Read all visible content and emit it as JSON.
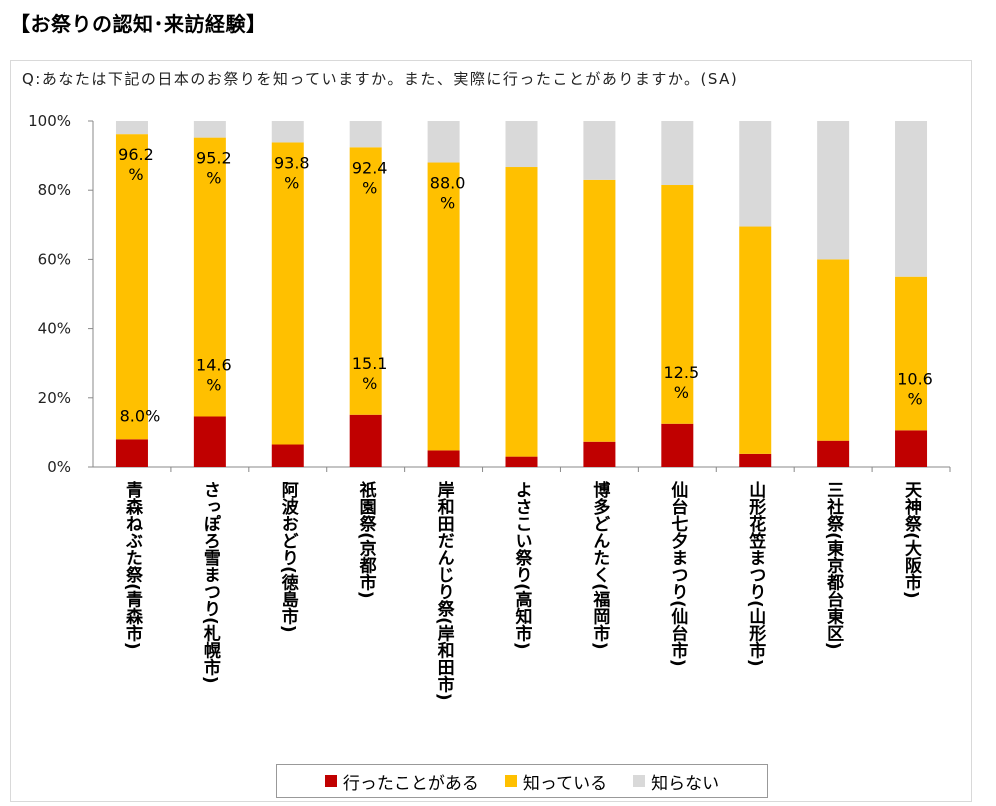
{
  "title": "【お祭りの認知･来訪経験】",
  "subtitle": "Q:あなたは下記の日本のお祭りを知っていますか。また、実際に行ったことがありますか。(SA)",
  "chart_data": {
    "type": "bar",
    "stacked": true,
    "categories": [
      "青森ねぶた祭(青森市)",
      "さっぽろ雪まつり(札幌市)",
      "阿波おどり(徳島市)",
      "祇園祭(京都市)",
      "岸和田だんじり祭(岸和田市)",
      "よさこい祭り(高知市)",
      "博多どんたく(福岡市)",
      "仙台七夕まつり(仙台市)",
      "山形花笠まつり(山形市)",
      "三社祭(東京都台東区)",
      "天神祭(大阪市)"
    ],
    "series": [
      {
        "name": "行ったことがある",
        "color": "#c00000",
        "values": [
          8.0,
          14.6,
          6.5,
          15.1,
          4.8,
          3.0,
          7.3,
          12.5,
          3.8,
          7.6,
          10.6
        ]
      },
      {
        "name": "知っている",
        "color": "#ffc000",
        "values": [
          88.2,
          80.6,
          87.3,
          77.3,
          83.2,
          83.7,
          75.7,
          69.0,
          65.7,
          52.4,
          44.4
        ]
      },
      {
        "name": "知らない",
        "color": "#d9d9d9",
        "values": [
          3.8,
          4.8,
          6.2,
          7.6,
          12.0,
          13.3,
          17.0,
          18.5,
          30.5,
          40.0,
          45.0
        ]
      }
    ],
    "yticks": [
      "0%",
      "20%",
      "40%",
      "60%",
      "80%",
      "100%"
    ],
    "ylim": [
      0,
      100
    ],
    "labels": [
      {
        "cat": 0,
        "series": "total",
        "text": "96.2%"
      },
      {
        "cat": 1,
        "series": "total",
        "text": "95.2%"
      },
      {
        "cat": 2,
        "series": "total",
        "text": "93.8%"
      },
      {
        "cat": 3,
        "series": "total",
        "text": "92.4%"
      },
      {
        "cat": 4,
        "series": "total",
        "text": "88.0%"
      },
      {
        "cat": 0,
        "series": "visited",
        "text": "8.0%"
      },
      {
        "cat": 1,
        "series": "visited",
        "text": "14.6%"
      },
      {
        "cat": 3,
        "series": "visited",
        "text": "15.1%"
      },
      {
        "cat": 7,
        "series": "visited",
        "text": "12.5%"
      },
      {
        "cat": 10,
        "series": "visited",
        "text": "10.6%"
      }
    ],
    "legend_position": "bottom",
    "grid": false
  }
}
